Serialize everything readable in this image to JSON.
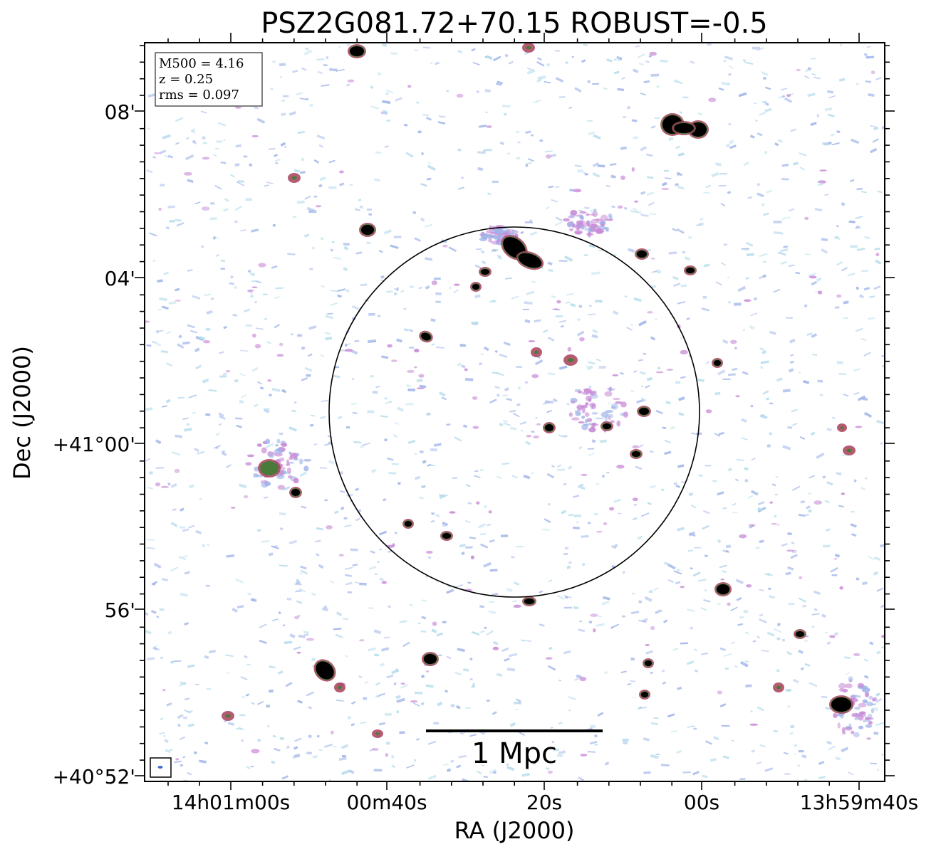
{
  "figure": {
    "title": "PSZ2G081.72+70.15 ROBUST=-0.5",
    "xlabel": "RA (J2000)",
    "ylabel": "Dec (J2000)",
    "xticks": [
      "14h01m00s",
      "00m40s",
      "20s",
      "00s",
      "13h59m40s"
    ],
    "yticks": [
      "08'",
      "04'",
      "+41°00'",
      "56'",
      "+40°52'"
    ],
    "info_box": {
      "line1": "M500 = 4.16",
      "line2": "z = 0.25",
      "line3": "rms = 0.097"
    },
    "scale_bar_label": "1 Mpc",
    "colors": {
      "noise_blue": "#9fb4e8",
      "noise_cyan": "#b5dcec",
      "emission_pink": "#c88ad6",
      "source_core": "#000000",
      "source_mid": "#4a7a3a",
      "source_rim": "#a8405a"
    }
  }
}
